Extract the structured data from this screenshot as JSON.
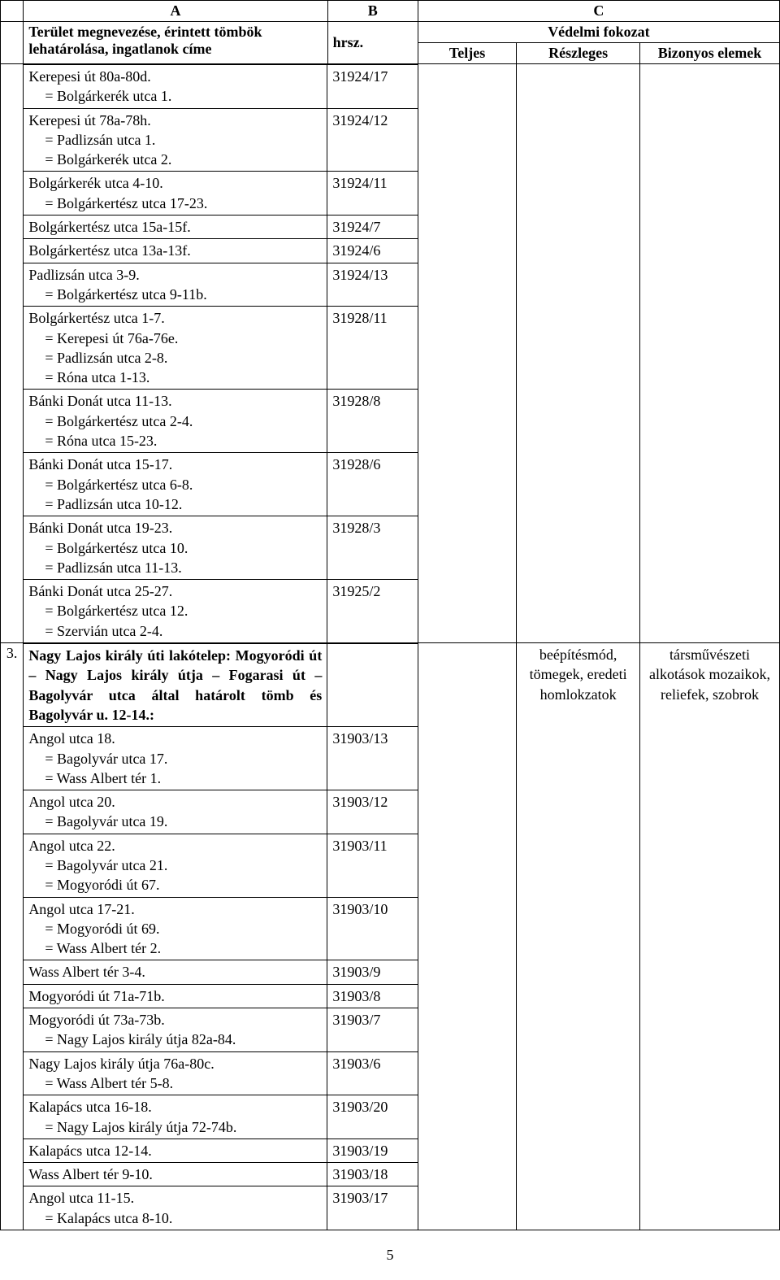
{
  "header": {
    "colA": "A",
    "colB": "B",
    "colC": "C",
    "row1_a": "Terület megnevezése, érintett tömbök lehatárolása, ingatlanok címe",
    "row1_b": "hrsz.",
    "row1_c": "Védelmi fokozat",
    "row2_teljes": "Teljes",
    "row2_reszleges": "Részleges",
    "row2_bizonyos": "Bizonyos elemek"
  },
  "block1": {
    "rows": [
      {
        "desc": "Kerepesi út 80a-80d.\n  = Bolgárkerék utca 1.",
        "hrsz": "31924/17"
      },
      {
        "desc": "Kerepesi út 78a-78h.\n  = Padlizsán utca 1.\n  = Bolgárkerék utca 2.",
        "hrsz": "31924/12"
      },
      {
        "desc": "Bolgárkerék utca 4-10.\n  = Bolgárkertész utca 17-23.",
        "hrsz": "31924/11"
      },
      {
        "desc": "Bolgárkertész utca 15a-15f.",
        "hrsz": "31924/7"
      },
      {
        "desc": "Bolgárkertész utca 13a-13f.",
        "hrsz": "31924/6"
      },
      {
        "desc": "Padlizsán utca 3-9.\n  = Bolgárkertész utca 9-11b.",
        "hrsz": "31924/13"
      },
      {
        "desc": "Bolgárkertész utca 1-7.\n  = Kerepesi út 76a-76e.\n  = Padlizsán utca 2-8.\n  = Róna utca 1-13.",
        "hrsz": "31928/11"
      },
      {
        "desc": "Bánki Donát utca 11-13.\n  = Bolgárkertész utca 2-4.\n  = Róna utca 15-23.",
        "hrsz": "31928/8"
      },
      {
        "desc": "Bánki Donát utca 15-17.\n  = Bolgárkertész utca 6-8.\n  = Padlizsán utca 10-12.",
        "hrsz": "31928/6"
      },
      {
        "desc": "Bánki Donát utca 19-23.\n  = Bolgárkertész utca 10.\n  = Padlizsán utca 11-13.",
        "hrsz": "31928/3"
      },
      {
        "desc": "Bánki Donát utca 25-27.\n  = Bolgárkertész utca 12.\n  = Szervián utca 2-4.",
        "hrsz": "31925/2"
      }
    ]
  },
  "block2": {
    "num": "3.",
    "title": "Nagy Lajos király úti lakótelep: Mogyoródi út – Nagy Lajos király útja – Fogarasi út – Bagolyvár utca által határolt tömb és Bagolyvár u. 12-14.:",
    "reszleges": "beépítésmód, tömegek, eredeti homlokzatok",
    "bizonyos": "társművészeti alkotások mozaikok, reliefek, szobrok",
    "rows": [
      {
        "desc": "Angol utca 18.\n  = Bagolyvár utca 17.\n  = Wass Albert tér 1.",
        "hrsz": "31903/13"
      },
      {
        "desc": "Angol utca 20.\n  = Bagolyvár utca 19.",
        "hrsz": "31903/12"
      },
      {
        "desc": "Angol utca 22.\n  = Bagolyvár utca 21.\n  = Mogyoródi út 67.",
        "hrsz": "31903/11"
      },
      {
        "desc": "Angol utca 17-21.\n  = Mogyoródi út 69.\n  = Wass Albert tér 2.",
        "hrsz": "31903/10"
      },
      {
        "desc": "Wass Albert tér 3-4.",
        "hrsz": "31903/9"
      },
      {
        "desc": "Mogyoródi út 71a-71b.",
        "hrsz": "31903/8"
      },
      {
        "desc": "Mogyoródi út 73a-73b.\n  = Nagy Lajos király útja 82a-84.",
        "hrsz": "31903/7"
      },
      {
        "desc": "Nagy Lajos király útja 76a-80c.\n  = Wass Albert tér 5-8.",
        "hrsz": "31903/6"
      },
      {
        "desc": "Kalapács utca 16-18.\n  = Nagy Lajos király útja 72-74b.",
        "hrsz": "31903/20"
      },
      {
        "desc": "Kalapács utca 12-14.",
        "hrsz": "31903/19"
      },
      {
        "desc": "Wass Albert tér 9-10.",
        "hrsz": "31903/18"
      },
      {
        "desc": "Angol utca 11-15.\n  = Kalapács utca 8-10.",
        "hrsz": "31903/17"
      }
    ]
  },
  "page_number": "5"
}
